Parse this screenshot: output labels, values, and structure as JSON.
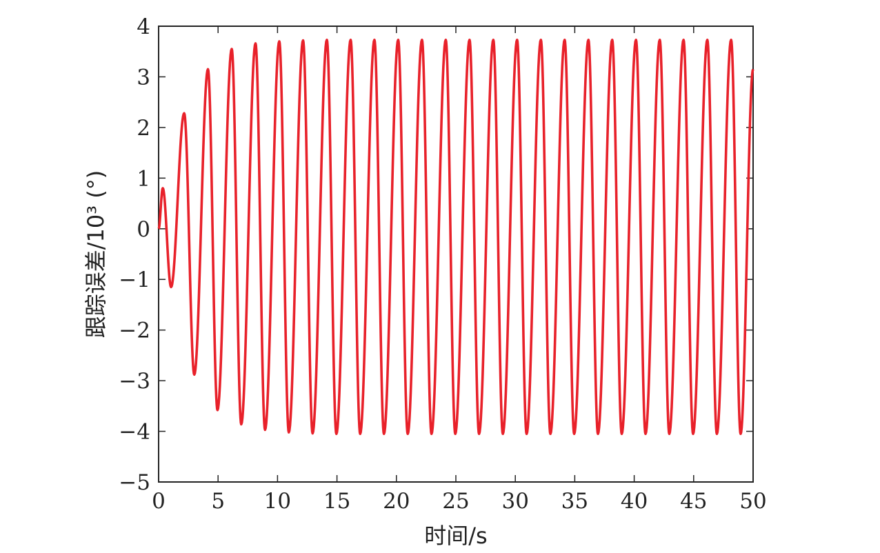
{
  "chart_data": {
    "type": "line",
    "title": "",
    "xlabel": "时间/s",
    "ylabel": "跟踪误差/10³ (°)",
    "xlim": [
      0,
      50
    ],
    "ylim": [
      -5,
      4
    ],
    "xticks": [
      0,
      5,
      10,
      15,
      20,
      25,
      30,
      35,
      40,
      45,
      50
    ],
    "yticks": [
      4,
      3,
      2,
      1,
      0,
      -1,
      -2,
      -3,
      -4,
      -5
    ],
    "xtick_labels": [
      "0",
      "5",
      "10",
      "15",
      "20",
      "25",
      "30",
      "35",
      "40",
      "45",
      "50"
    ],
    "ytick_labels": [
      "4",
      "3",
      "2",
      "1",
      "0",
      "−1",
      "−2",
      "−3",
      "−4",
      "−5"
    ],
    "grid": false,
    "series": [
      {
        "color": "#e8212a",
        "x": [
          0,
          0.35,
          1.05,
          2.15,
          3.0,
          4.15,
          4.95,
          6.15,
          6.95,
          8.15,
          8.95,
          10.15,
          10.95,
          12.15,
          12.95,
          14.15,
          14.95,
          16.15,
          16.95,
          18.15,
          18.95,
          20.15,
          20.95,
          22.15,
          22.95,
          24.15,
          24.95,
          26.15,
          26.95,
          28.15,
          28.95,
          30.15,
          30.95,
          32.15,
          32.95,
          34.15,
          34.95,
          36.15,
          36.95,
          38.15,
          38.95,
          40.15,
          40.95,
          42.15,
          42.95,
          44.15,
          44.95,
          46.15,
          46.95,
          48.15,
          48.95,
          50.0
        ],
        "y": [
          0,
          0.8,
          -1.15,
          2.28,
          -2.88,
          3.15,
          -3.58,
          3.55,
          -3.86,
          3.66,
          -3.97,
          3.7,
          -4.02,
          3.72,
          -4.04,
          3.73,
          -4.05,
          3.73,
          -4.05,
          3.73,
          -4.05,
          3.73,
          -4.05,
          3.73,
          -4.05,
          3.73,
          -4.05,
          3.73,
          -4.05,
          3.73,
          -4.05,
          3.73,
          -4.05,
          3.73,
          -4.05,
          3.73,
          -4.05,
          3.73,
          -4.05,
          3.73,
          -4.05,
          3.73,
          -4.05,
          3.73,
          -4.05,
          3.73,
          -4.05,
          3.73,
          -4.05,
          3.73,
          -4.05,
          3.15
        ]
      }
    ]
  }
}
